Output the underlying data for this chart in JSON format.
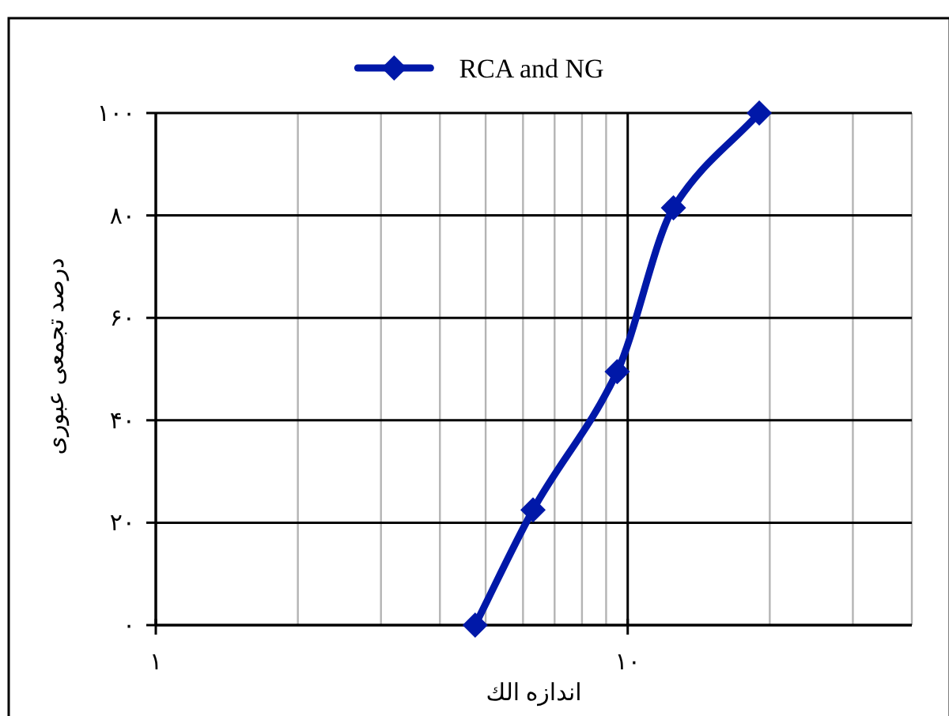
{
  "chart_data": {
    "type": "line",
    "xlabel": "اندازه الك",
    "ylabel": "درصد تجمعی عبوری",
    "x": [
      4.75,
      6.3,
      9.5,
      12.5,
      19
    ],
    "series": [
      {
        "name": "RCA and NG",
        "color": "#0018a8",
        "values": [
          0,
          22.5,
          49.5,
          81.5,
          100
        ]
      }
    ],
    "log": "x",
    "xlim": [
      1,
      40
    ],
    "xticks": [
      {
        "value": 1,
        "label": "۱"
      },
      {
        "value": 10,
        "label": "۱۰"
      }
    ],
    "ylim": [
      0,
      100
    ],
    "yticks": [
      {
        "value": 0,
        "label": "۰"
      },
      {
        "value": 20,
        "label": "۲۰"
      },
      {
        "value": 40,
        "label": "۴۰"
      },
      {
        "value": 60,
        "label": "۶۰"
      },
      {
        "value": 80,
        "label": "۸۰"
      },
      {
        "value": 100,
        "label": "۱۰۰"
      }
    ],
    "grid": true,
    "legend": "top",
    "marker": "diamond",
    "line_style": "solid"
  }
}
